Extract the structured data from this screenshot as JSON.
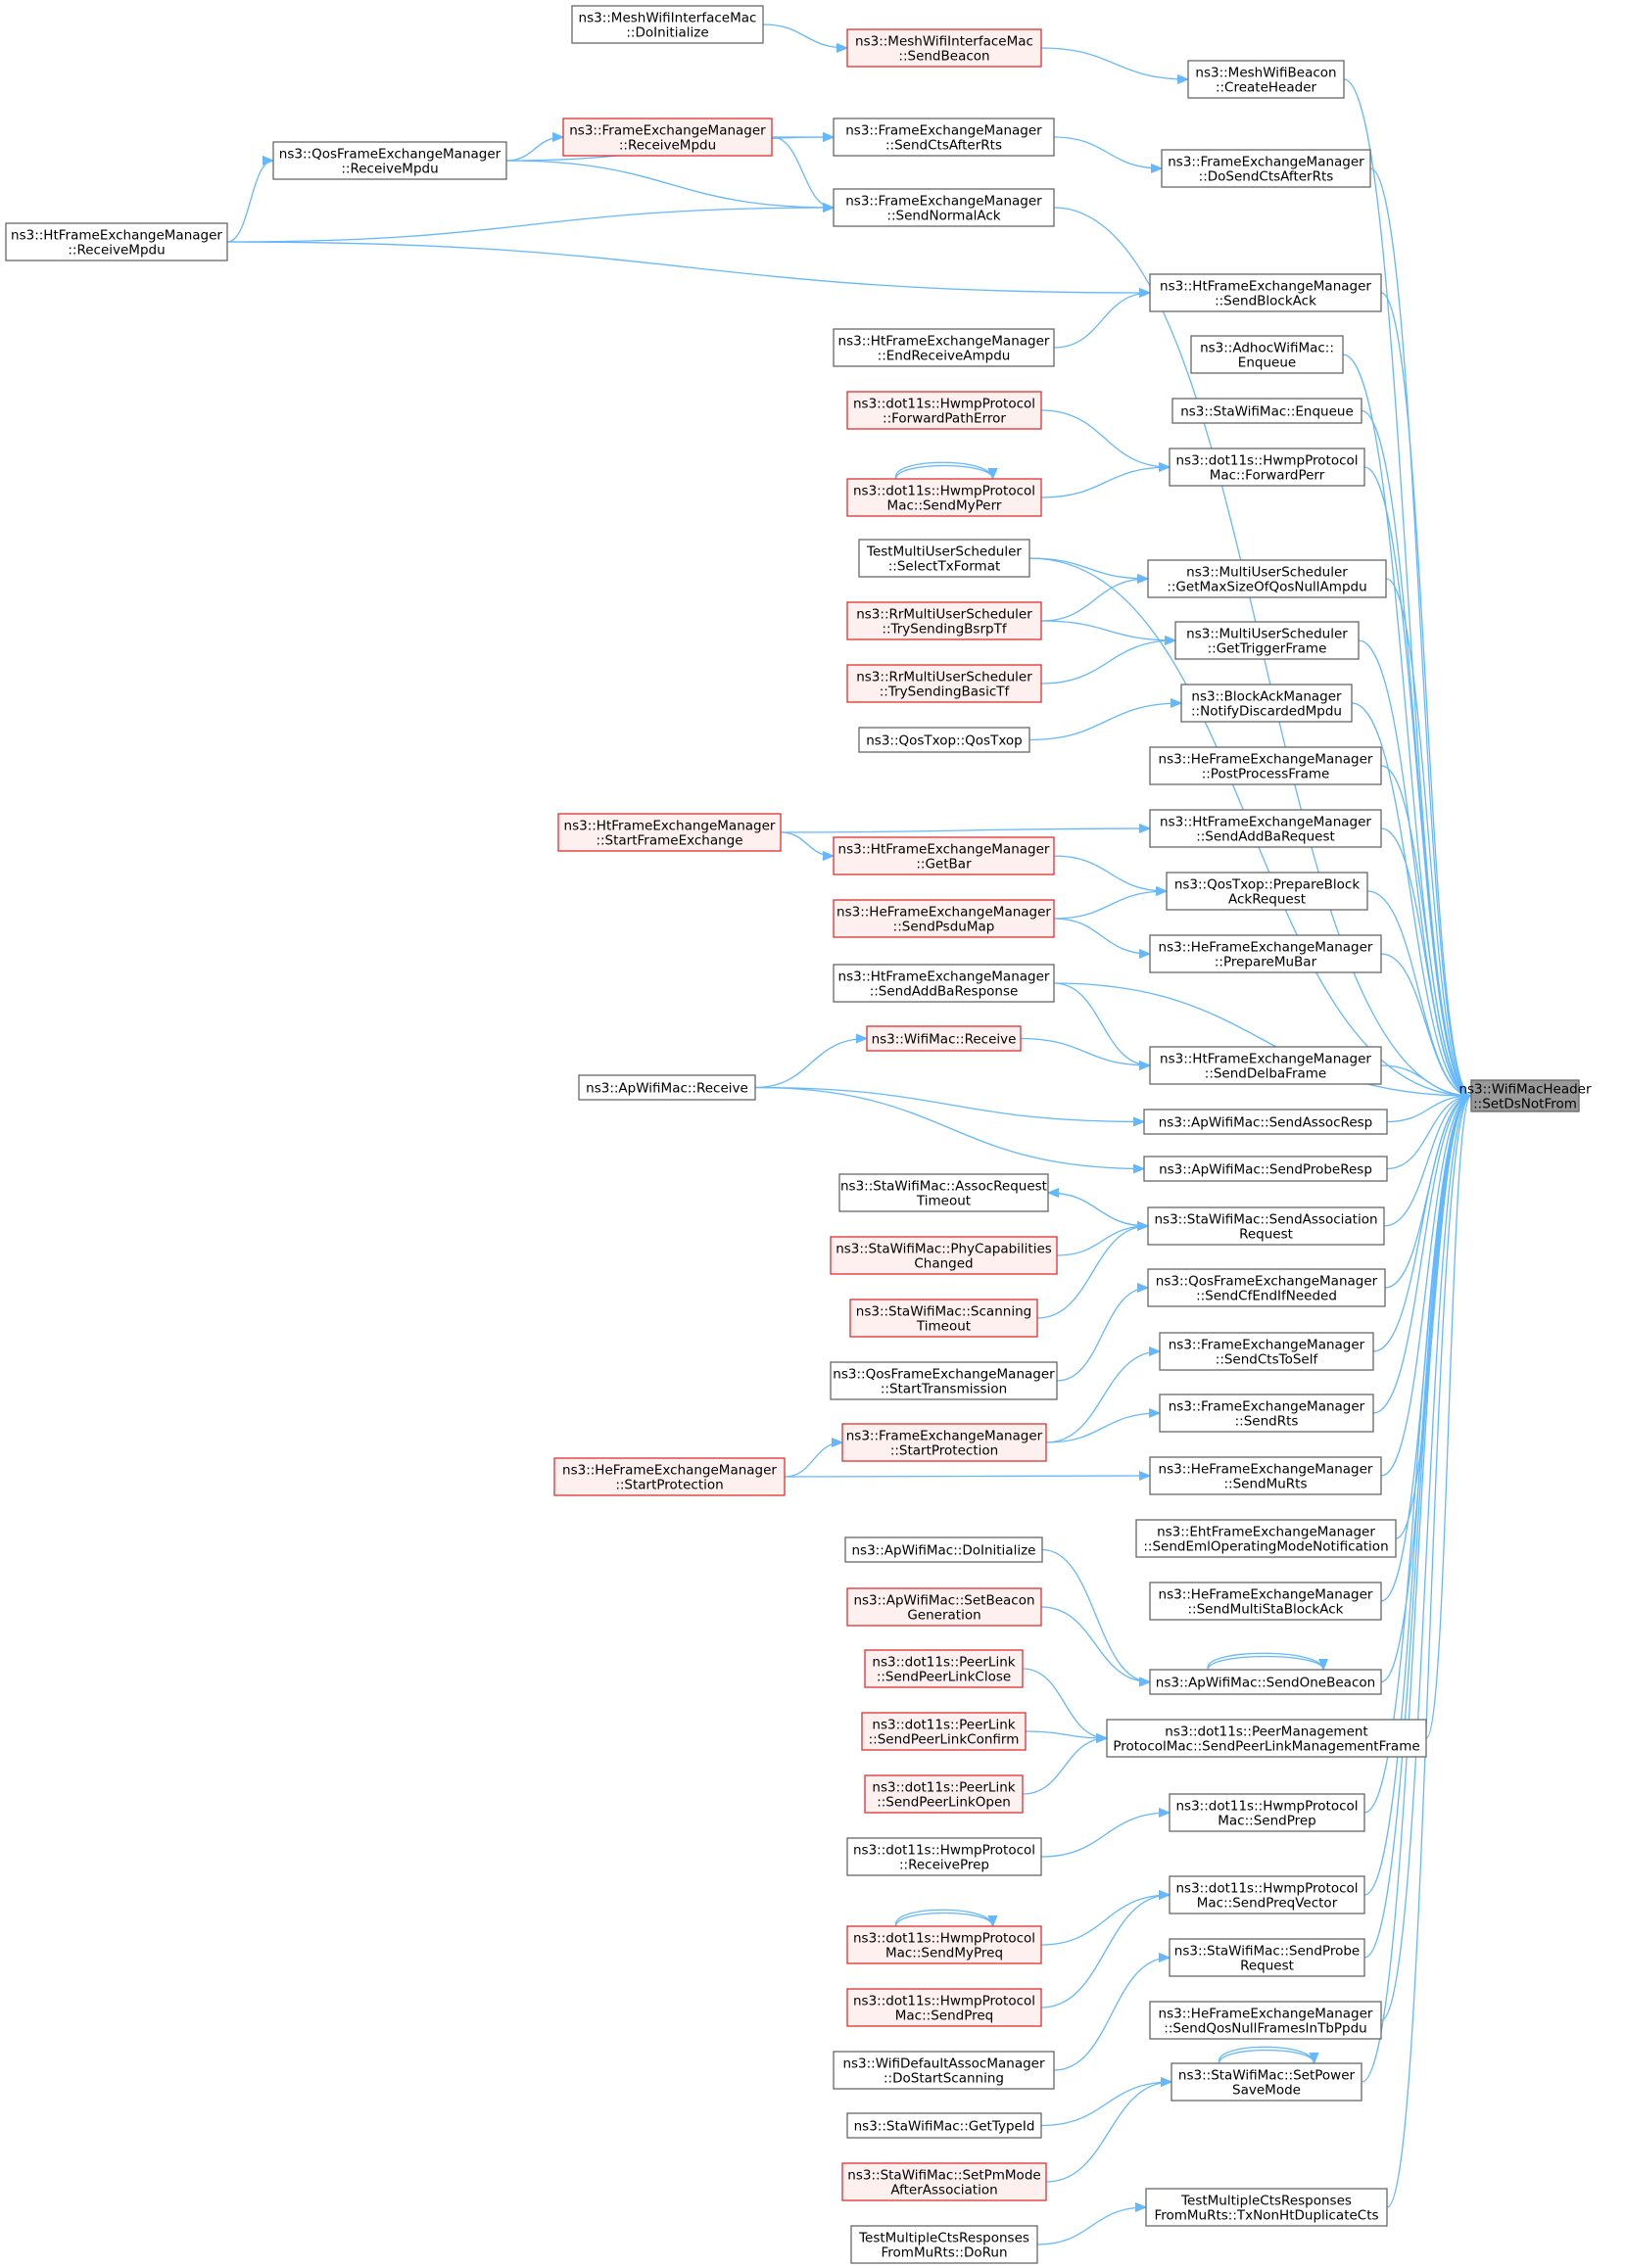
{
  "colors": {
    "edge": "#63b8ff",
    "border": "#666666",
    "red_border": "#e03030",
    "red_fill": "#fff0f0",
    "target_fill": "#999999"
  },
  "target": {
    "id": "target",
    "lines": [
      "ns3::WifiMacHeader",
      "::SetDsNotFrom"
    ]
  },
  "nodes": [
    {
      "id": "c1",
      "lines": [
        "ns3::MeshWifiBeacon",
        "::CreateHeader"
      ]
    },
    {
      "id": "c2",
      "lines": [
        "ns3::FrameExchangeManager",
        "::DoSendCtsAfterRts"
      ]
    },
    {
      "id": "c3",
      "lines": [
        "ns3::HtFrameExchangeManager",
        "::SendBlockAck"
      ]
    },
    {
      "id": "c4",
      "lines": [
        "ns3::AdhocWifiMac::",
        "Enqueue"
      ]
    },
    {
      "id": "c5",
      "lines": [
        "ns3::StaWifiMac::Enqueue"
      ]
    },
    {
      "id": "c6",
      "lines": [
        "ns3::dot11s::HwmpProtocol",
        "Mac::ForwardPerr"
      ]
    },
    {
      "id": "c7",
      "lines": [
        "ns3::MultiUserScheduler",
        "::GetMaxSizeOfQosNullAmpdu"
      ]
    },
    {
      "id": "c8",
      "lines": [
        "ns3::MultiUserScheduler",
        "::GetTriggerFrame"
      ]
    },
    {
      "id": "c9",
      "lines": [
        "ns3::BlockAckManager",
        "::NotifyDiscardedMpdu"
      ]
    },
    {
      "id": "c10",
      "lines": [
        "ns3::HeFrameExchangeManager",
        "::PostProcessFrame"
      ]
    },
    {
      "id": "c11",
      "lines": [
        "ns3::HtFrameExchangeManager",
        "::SendAddBaRequest"
      ]
    },
    {
      "id": "c12",
      "lines": [
        "ns3::QosTxop::PrepareBlock",
        "AckRequest"
      ]
    },
    {
      "id": "c13",
      "lines": [
        "ns3::HeFrameExchangeManager",
        "::PrepareMuBar"
      ]
    },
    {
      "id": "c14",
      "lines": [
        "ns3::HtFrameExchangeManager",
        "::SendDelbaFrame"
      ]
    },
    {
      "id": "c15",
      "lines": [
        "ns3::ApWifiMac::SendAssocResp"
      ]
    },
    {
      "id": "c16",
      "lines": [
        "ns3::ApWifiMac::SendProbeResp"
      ]
    },
    {
      "id": "c17",
      "lines": [
        "ns3::StaWifiMac::SendAssociation",
        "Request"
      ]
    },
    {
      "id": "c18",
      "lines": [
        "ns3::QosFrameExchangeManager",
        "::SendCfEndIfNeeded"
      ]
    },
    {
      "id": "c19",
      "lines": [
        "ns3::FrameExchangeManager",
        "::SendCtsToSelf"
      ]
    },
    {
      "id": "c20",
      "lines": [
        "ns3::FrameExchangeManager",
        "::SendRts"
      ]
    },
    {
      "id": "c21",
      "lines": [
        "ns3::HeFrameExchangeManager",
        "::SendMuRts"
      ]
    },
    {
      "id": "c22",
      "lines": [
        "ns3::EhtFrameExchangeManager",
        "::SendEmlOperatingModeNotification"
      ]
    },
    {
      "id": "c23",
      "lines": [
        "ns3::HeFrameExchangeManager",
        "::SendMultiStaBlockAck"
      ]
    },
    {
      "id": "c24",
      "lines": [
        "ns3::ApWifiMac::SendOneBeacon"
      ]
    },
    {
      "id": "c25",
      "lines": [
        "ns3::dot11s::PeerManagement",
        "ProtocolMac::SendPeerLinkManagementFrame"
      ]
    },
    {
      "id": "c26",
      "lines": [
        "ns3::dot11s::HwmpProtocol",
        "Mac::SendPrep"
      ]
    },
    {
      "id": "c27",
      "lines": [
        "ns3::dot11s::HwmpProtocol",
        "Mac::SendPreqVector"
      ]
    },
    {
      "id": "c28",
      "lines": [
        "ns3::StaWifiMac::SendProbe",
        "Request"
      ]
    },
    {
      "id": "c29",
      "lines": [
        "ns3::HeFrameExchangeManager",
        "::SendQosNullFramesInTbPpdu"
      ]
    },
    {
      "id": "c30",
      "lines": [
        "ns3::StaWifiMac::SetPower",
        "SaveMode"
      ]
    },
    {
      "id": "c31",
      "lines": [
        "TestMultipleCtsResponses",
        "FromMuRts::TxNonHtDuplicateCts"
      ]
    },
    {
      "id": "b1",
      "lines": [
        "ns3::MeshWifiInterfaceMac",
        "::SendBeacon"
      ],
      "red": true
    },
    {
      "id": "b2",
      "lines": [
        "ns3::FrameExchangeManager",
        "::SendCtsAfterRts"
      ]
    },
    {
      "id": "b3",
      "lines": [
        "ns3::FrameExchangeManager",
        "::SendNormalAck"
      ]
    },
    {
      "id": "b4",
      "lines": [
        "ns3::HtFrameExchangeManager",
        "::EndReceiveAmpdu"
      ]
    },
    {
      "id": "b5",
      "lines": [
        "ns3::dot11s::HwmpProtocol",
        "::ForwardPathError"
      ],
      "red": true
    },
    {
      "id": "b6",
      "lines": [
        "ns3::dot11s::HwmpProtocol",
        "Mac::SendMyPerr"
      ],
      "red": true
    },
    {
      "id": "b7",
      "lines": [
        "TestMultiUserScheduler",
        "::SelectTxFormat"
      ]
    },
    {
      "id": "b8",
      "lines": [
        "ns3::RrMultiUserScheduler",
        "::TrySendingBsrpTf"
      ],
      "red": true
    },
    {
      "id": "b9",
      "lines": [
        "ns3::RrMultiUserScheduler",
        "::TrySendingBasicTf"
      ],
      "red": true
    },
    {
      "id": "b10",
      "lines": [
        "ns3::QosTxop::QosTxop"
      ]
    },
    {
      "id": "b11",
      "lines": [
        "ns3::HtFrameExchangeManager",
        "::GetBar"
      ],
      "red": true
    },
    {
      "id": "b12",
      "lines": [
        "ns3::HeFrameExchangeManager",
        "::SendPsduMap"
      ],
      "red": true
    },
    {
      "id": "b13",
      "lines": [
        "ns3::HtFrameExchangeManager",
        "::SendAddBaResponse"
      ]
    },
    {
      "id": "b14",
      "lines": [
        "ns3::WifiMac::Receive"
      ],
      "red": true
    },
    {
      "id": "b15",
      "lines": [
        "ns3::StaWifiMac::AssocRequest",
        "Timeout"
      ]
    },
    {
      "id": "b16",
      "lines": [
        "ns3::StaWifiMac::PhyCapabilities",
        "Changed"
      ],
      "red": true
    },
    {
      "id": "b17",
      "lines": [
        "ns3::StaWifiMac::Scanning",
        "Timeout"
      ],
      "red": true
    },
    {
      "id": "b18",
      "lines": [
        "ns3::QosFrameExchangeManager",
        "::StartTransmission"
      ]
    },
    {
      "id": "b19",
      "lines": [
        "ns3::FrameExchangeManager",
        "::StartProtection"
      ],
      "red": true
    },
    {
      "id": "b20",
      "lines": [
        "ns3::ApWifiMac::DoInitialize"
      ]
    },
    {
      "id": "b21",
      "lines": [
        "ns3::ApWifiMac::SetBeacon",
        "Generation"
      ],
      "red": true
    },
    {
      "id": "b22",
      "lines": [
        "ns3::dot11s::PeerLink",
        "::SendPeerLinkClose"
      ],
      "red": true
    },
    {
      "id": "b23",
      "lines": [
        "ns3::dot11s::PeerLink",
        "::SendPeerLinkConfirm"
      ],
      "red": true
    },
    {
      "id": "b24",
      "lines": [
        "ns3::dot11s::PeerLink",
        "::SendPeerLinkOpen"
      ],
      "red": true
    },
    {
      "id": "b25",
      "lines": [
        "ns3::dot11s::HwmpProtocol",
        "::ReceivePrep"
      ]
    },
    {
      "id": "b26",
      "lines": [
        "ns3::dot11s::HwmpProtocol",
        "Mac::SendMyPreq"
      ],
      "red": true
    },
    {
      "id": "b27",
      "lines": [
        "ns3::dot11s::HwmpProtocol",
        "Mac::SendPreq"
      ],
      "red": true
    },
    {
      "id": "b28",
      "lines": [
        "ns3::WifiDefaultAssocManager",
        "::DoStartScanning"
      ]
    },
    {
      "id": "b29",
      "lines": [
        "ns3::StaWifiMac::GetTypeId"
      ]
    },
    {
      "id": "b30",
      "lines": [
        "ns3::StaWifiMac::SetPmMode",
        "AfterAssociation"
      ],
      "red": true
    },
    {
      "id": "b31",
      "lines": [
        "TestMultipleCtsResponses",
        "FromMuRts::DoRun"
      ]
    },
    {
      "id": "a1",
      "lines": [
        "ns3::MeshWifiInterfaceMac",
        "::DoInitialize"
      ]
    },
    {
      "id": "a2",
      "lines": [
        "ns3::FrameExchangeManager",
        "::ReceiveMpdu"
      ],
      "red": true
    },
    {
      "id": "a3",
      "lines": [
        "ns3::QosFrameExchangeManager",
        "::ReceiveMpdu"
      ]
    },
    {
      "id": "a4",
      "lines": [
        "ns3::HtFrameExchangeManager",
        "::ReceiveMpdu"
      ]
    },
    {
      "id": "a5",
      "lines": [
        "ns3::HtFrameExchangeManager",
        "::StartFrameExchange"
      ],
      "red": true
    },
    {
      "id": "a6",
      "lines": [
        "ns3::ApWifiMac::Receive"
      ]
    },
    {
      "id": "a7",
      "lines": [
        "ns3::HeFrameExchangeManager",
        "::StartProtection"
      ],
      "red": true
    }
  ],
  "edges": [
    [
      "c1",
      "target"
    ],
    [
      "c2",
      "target"
    ],
    [
      "c3",
      "target"
    ],
    [
      "c4",
      "target"
    ],
    [
      "c5",
      "target"
    ],
    [
      "c6",
      "target"
    ],
    [
      "c7",
      "target"
    ],
    [
      "c8",
      "target"
    ],
    [
      "c9",
      "target"
    ],
    [
      "c10",
      "target"
    ],
    [
      "c11",
      "target"
    ],
    [
      "c12",
      "target"
    ],
    [
      "c13",
      "target"
    ],
    [
      "c14",
      "target"
    ],
    [
      "c15",
      "target"
    ],
    [
      "c16",
      "target"
    ],
    [
      "c17",
      "target"
    ],
    [
      "c18",
      "target"
    ],
    [
      "c19",
      "target"
    ],
    [
      "c20",
      "target"
    ],
    [
      "c21",
      "target"
    ],
    [
      "c22",
      "target"
    ],
    [
      "c23",
      "target"
    ],
    [
      "c24",
      "target"
    ],
    [
      "c25",
      "target"
    ],
    [
      "c26",
      "target"
    ],
    [
      "c27",
      "target"
    ],
    [
      "c28",
      "target"
    ],
    [
      "c29",
      "target"
    ],
    [
      "c30",
      "target"
    ],
    [
      "c31",
      "target"
    ],
    [
      "b3",
      "target"
    ],
    [
      "b7",
      "target"
    ],
    [
      "b13",
      "target"
    ],
    [
      "b1",
      "c1"
    ],
    [
      "b2",
      "c2"
    ],
    [
      "b4",
      "c3"
    ],
    [
      "a4",
      "c3"
    ],
    [
      "b5",
      "c6"
    ],
    [
      "b6",
      "c6"
    ],
    [
      "b7",
      "c7"
    ],
    [
      "b8",
      "c7"
    ],
    [
      "b8",
      "c8"
    ],
    [
      "b9",
      "c8"
    ],
    [
      "b10",
      "c9"
    ],
    [
      "a5",
      "c11"
    ],
    [
      "b11",
      "c12"
    ],
    [
      "b12",
      "c12"
    ],
    [
      "b12",
      "c13"
    ],
    [
      "b13",
      "c14"
    ],
    [
      "b14",
      "c14"
    ],
    [
      "a6",
      "c15"
    ],
    [
      "a6",
      "c16"
    ],
    [
      "b15",
      "c17"
    ],
    [
      "b16",
      "c17"
    ],
    [
      "b17",
      "c17"
    ],
    [
      "b18",
      "c18"
    ],
    [
      "b19",
      "c19"
    ],
    [
      "b19",
      "c20"
    ],
    [
      "a7",
      "c21"
    ],
    [
      "b20",
      "c24"
    ],
    [
      "b21",
      "c24"
    ],
    [
      "b22",
      "c25"
    ],
    [
      "b23",
      "c25"
    ],
    [
      "b24",
      "c25"
    ],
    [
      "b25",
      "c26"
    ],
    [
      "b26",
      "c27"
    ],
    [
      "b27",
      "c27"
    ],
    [
      "b28",
      "c28"
    ],
    [
      "b29",
      "c30"
    ],
    [
      "b30",
      "c30"
    ],
    [
      "b31",
      "c31"
    ],
    [
      "a1",
      "b1"
    ],
    [
      "a2",
      "b2"
    ],
    [
      "a2",
      "b3"
    ],
    [
      "a3",
      "b2"
    ],
    [
      "a3",
      "b3"
    ],
    [
      "a4",
      "b3"
    ],
    [
      "a5",
      "b11"
    ],
    [
      "a6",
      "b14"
    ],
    [
      "c17",
      "b15"
    ],
    [
      "a7",
      "b19"
    ],
    [
      "a3",
      "a2"
    ],
    [
      "a4",
      "a3"
    ]
  ],
  "self_loops": [
    "b6",
    "b26",
    "c24",
    "c30"
  ]
}
